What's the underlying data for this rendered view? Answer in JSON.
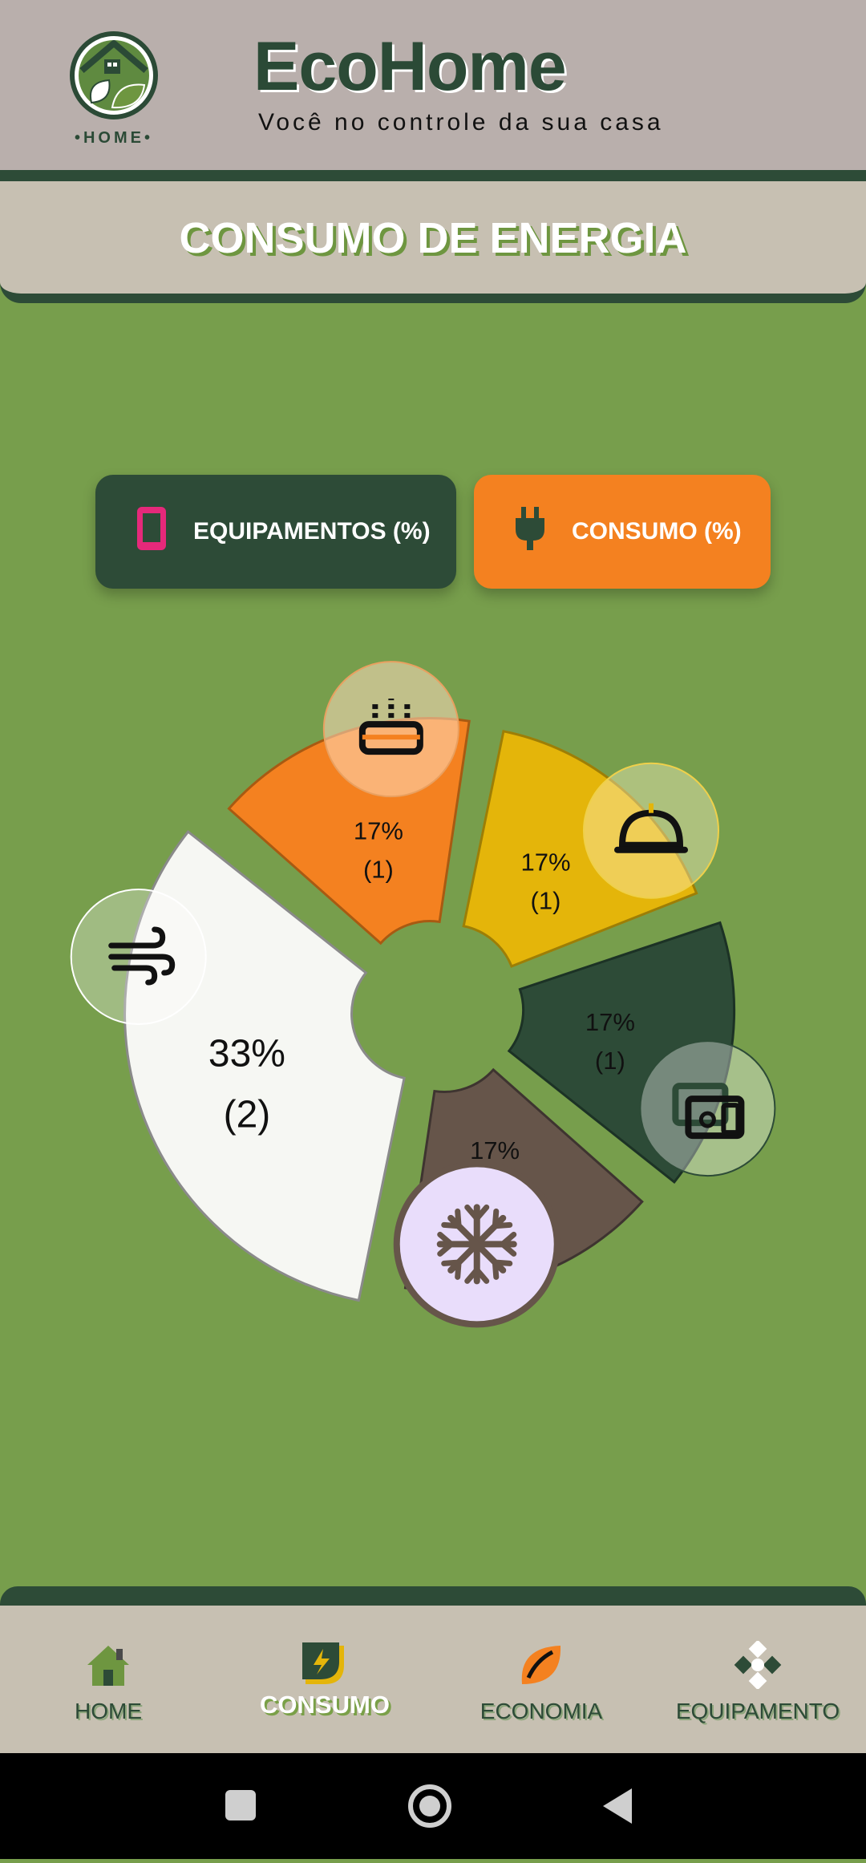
{
  "header": {
    "title": "EcoHome",
    "subtitle": "Você no controle da sua casa",
    "logo_text": "•HOME•"
  },
  "section": {
    "title": "CONSUMO DE ENERGIA"
  },
  "toggles": {
    "equipamentos_label": "EQUIPAMENTOS (%)",
    "consumo_label": "CONSUMO (%)"
  },
  "chart_data": {
    "type": "pie",
    "slices": [
      {
        "icon": "fan-icon",
        "percent": "33%",
        "count": "(2)",
        "value": 2,
        "color": "#f6f7f3"
      },
      {
        "icon": "toaster-icon",
        "percent": "17%",
        "count": "(1)",
        "value": 1,
        "color": "#f48120"
      },
      {
        "icon": "service-bell-icon",
        "percent": "17%",
        "count": "(1)",
        "value": 1,
        "color": "#e4b50a"
      },
      {
        "icon": "devices-icon",
        "percent": "17%",
        "count": "(1)",
        "value": 1,
        "color": "#2d4b37"
      },
      {
        "icon": "snowflake-icon",
        "percent": "17%",
        "count": "(1)",
        "value": 1,
        "color": "#66554a"
      }
    ]
  },
  "nav": {
    "items": [
      {
        "label": "HOME",
        "icon": "home-icon"
      },
      {
        "label": "CONSUMO",
        "icon": "energy-icon"
      },
      {
        "label": "ECONOMIA",
        "icon": "leaf-icon"
      },
      {
        "label": "EQUIPAMENTO",
        "icon": "equipment-icon"
      }
    ],
    "active": "CONSUMO"
  },
  "colors": {
    "background": "#779e4c",
    "header": "#b9afac",
    "dark_green": "#2d4b37",
    "orange": "#f48120",
    "yellow": "#e4b50a",
    "brown": "#66554a",
    "white_slice": "#f6f7f3"
  }
}
